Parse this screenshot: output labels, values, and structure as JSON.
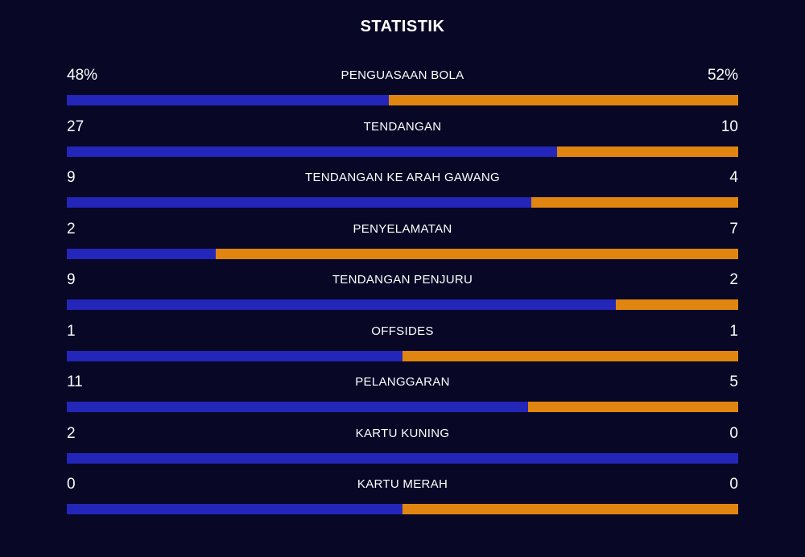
{
  "title": "STATISTIK",
  "colors": {
    "background": "#080726",
    "home": "#2326b8",
    "away": "#e0850f"
  },
  "stats": [
    {
      "label": "PENGUASAAN BOLA",
      "home": "48%",
      "away": "52%",
      "home_share": 0.48
    },
    {
      "label": "TENDANGAN",
      "home": "27",
      "away": "10",
      "home_share": 0.7297
    },
    {
      "label": "TENDANGAN KE ARAH GAWANG",
      "home": "9",
      "away": "4",
      "home_share": 0.6923
    },
    {
      "label": "PENYELAMATAN",
      "home": "2",
      "away": "7",
      "home_share": 0.2222
    },
    {
      "label": "TENDANGAN PENJURU",
      "home": "9",
      "away": "2",
      "home_share": 0.8182
    },
    {
      "label": "OFFSIDES",
      "home": "1",
      "away": "1",
      "home_share": 0.5
    },
    {
      "label": "PELANGGARAN",
      "home": "11",
      "away": "5",
      "home_share": 0.6875
    },
    {
      "label": "KARTU KUNING",
      "home": "2",
      "away": "0",
      "home_share": 1.0
    },
    {
      "label": "KARTU MERAH",
      "home": "0",
      "away": "0",
      "home_share": 0.5
    }
  ]
}
